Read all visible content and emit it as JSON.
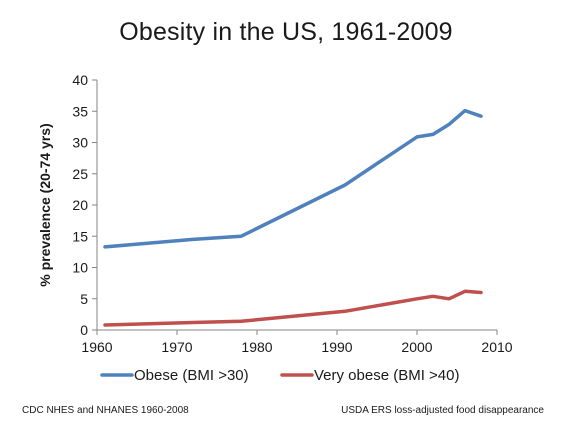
{
  "chart_data": {
    "type": "line",
    "title": "Obesity in the US, 1961-2009",
    "ylabel": "% prevalence (20-74 yrs)",
    "xlabel": "",
    "xlim": [
      1960,
      2010
    ],
    "ylim": [
      0,
      40
    ],
    "x_ticks": [
      "1960",
      "1970",
      "1980",
      "1990",
      "2000",
      "2010"
    ],
    "y_ticks": [
      "0",
      "5",
      "10",
      "15",
      "20",
      "25",
      "30",
      "35",
      "40"
    ],
    "grid": false,
    "legend_position": "bottom",
    "series": [
      {
        "name": "Obese (BMI >30)",
        "color": "#4f81bd",
        "x": [
          1961,
          1972,
          1978,
          1991,
          2000,
          2002,
          2004,
          2006,
          2008
        ],
        "y": [
          13.3,
          14.5,
          15.0,
          23.2,
          30.9,
          31.3,
          32.9,
          35.1,
          34.2
        ]
      },
      {
        "name": "Very obese (BMI >40)",
        "color": "#c0504d",
        "x": [
          1961,
          1972,
          1978,
          1991,
          2000,
          2002,
          2004,
          2006,
          2008
        ],
        "y": [
          0.8,
          1.2,
          1.4,
          3.0,
          5.0,
          5.4,
          5.0,
          6.2,
          6.0
        ]
      }
    ]
  },
  "sources": {
    "left": "CDC NHES and NHANES 1960-2008",
    "right": "USDA ERS loss-adjusted  food disappearance"
  }
}
